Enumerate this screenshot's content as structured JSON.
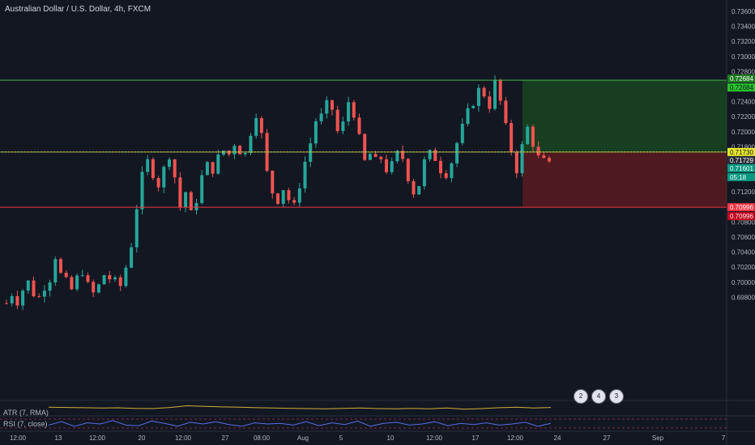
{
  "header": {
    "title": "Australian Dollar / U.S. Dollar, 4h, FXCM"
  },
  "indicators": {
    "atr_label": "ATR (7, RMA)",
    "rsi_label": "RSI (7, close)"
  },
  "badges": [
    "2",
    "4",
    "3"
  ],
  "colors": {
    "up": "#26a69a",
    "down": "#ef5350",
    "background": "#131722",
    "tp_line": "#4caf50",
    "entry_line": "#e6e62e",
    "sl_line": "#f23645"
  },
  "levels": {
    "take_profit": 0.72684,
    "entry": 0.7173,
    "stop_loss": 0.70996,
    "last_price_a": 0.71729,
    "last_price_b": 0.71601,
    "countdown": "05:18"
  },
  "chart_data": {
    "type": "candlestick",
    "title": "Australian Dollar / U.S. Dollar, 4h, FXCM",
    "y_ticks": [
      "0.73600",
      "0.73400",
      "0.73200",
      "0.73000",
      "0.72800",
      "0.72600",
      "0.72400",
      "0.72200",
      "0.72000",
      "0.71800",
      "0.71600",
      "0.71400",
      "0.71200",
      "0.71000",
      "0.70800",
      "0.70600",
      "0.70400",
      "0.70200",
      "0.70000",
      "0.69800"
    ],
    "x_ticks": [
      "12:00",
      "13",
      "12:00",
      "20",
      "12:00",
      "27",
      "08:00",
      "Aug",
      "5",
      "10",
      "12:00",
      "17",
      "12:00",
      "24",
      "27",
      "Sep",
      "7"
    ],
    "ylim": [
      0.6965,
      0.7375
    ],
    "price_path": [
      0.6972,
      0.6985,
      0.6975,
      0.699,
      0.7,
      0.6985,
      0.698,
      0.6995,
      0.7005,
      0.7035,
      0.701,
      0.7,
      0.699,
      0.7005,
      0.7015,
      0.6995,
      0.6985,
      0.6995,
      0.701,
      0.7005,
      0.7,
      0.6995,
      0.702,
      0.705,
      0.71,
      0.714,
      0.716,
      0.7145,
      0.713,
      0.715,
      0.717,
      0.714,
      0.71,
      0.712,
      0.709,
      0.711,
      0.714,
      0.7155,
      0.715,
      0.7165,
      0.7175,
      0.717,
      0.7185,
      0.7175,
      0.717,
      0.72,
      0.7225,
      0.7195,
      0.7145,
      0.712,
      0.711,
      0.7125,
      0.711,
      0.71,
      0.713,
      0.716,
      0.7185,
      0.7215,
      0.722,
      0.7235,
      0.723,
      0.72,
      0.721,
      0.724,
      0.7225,
      0.719,
      0.716,
      0.717,
      0.716,
      0.7165,
      0.715,
      0.7155,
      0.717,
      0.7165,
      0.714,
      0.712,
      0.713,
      0.716,
      0.717,
      0.7165,
      0.715,
      0.7145,
      0.716,
      0.7185,
      0.7205,
      0.7225,
      0.724,
      0.7255,
      0.725,
      0.7235,
      0.7265,
      0.724,
      0.7205,
      0.7175,
      0.715,
      0.718,
      0.7205,
      0.7185,
      0.7165,
      0.716,
      0.7155
    ],
    "candle_count": 101,
    "atr_path": [
      0.62,
      0.6,
      0.58,
      0.55,
      0.57,
      0.52,
      0.5,
      0.6,
      0.75,
      0.7,
      0.65,
      0.62,
      0.58,
      0.55,
      0.52,
      0.5,
      0.48,
      0.52,
      0.55,
      0.5,
      0.48,
      0.52,
      0.48,
      0.55,
      0.45,
      0.5,
      0.58,
      0.62,
      0.55,
      0.6
    ],
    "rsi_path": [
      0.4,
      0.7,
      0.3,
      0.6,
      0.5,
      0.8,
      0.4,
      0.35,
      0.75,
      0.55,
      0.3,
      0.65,
      0.5,
      0.7,
      0.45,
      0.3,
      0.6,
      0.5,
      0.55,
      0.4,
      0.7,
      0.35,
      0.6,
      0.45,
      0.75,
      0.3,
      0.55,
      0.65,
      0.4,
      0.5,
      0.7,
      0.35,
      0.55,
      0.45,
      0.6,
      0.4,
      0.5,
      0.65,
      0.3,
      0.55
    ]
  }
}
